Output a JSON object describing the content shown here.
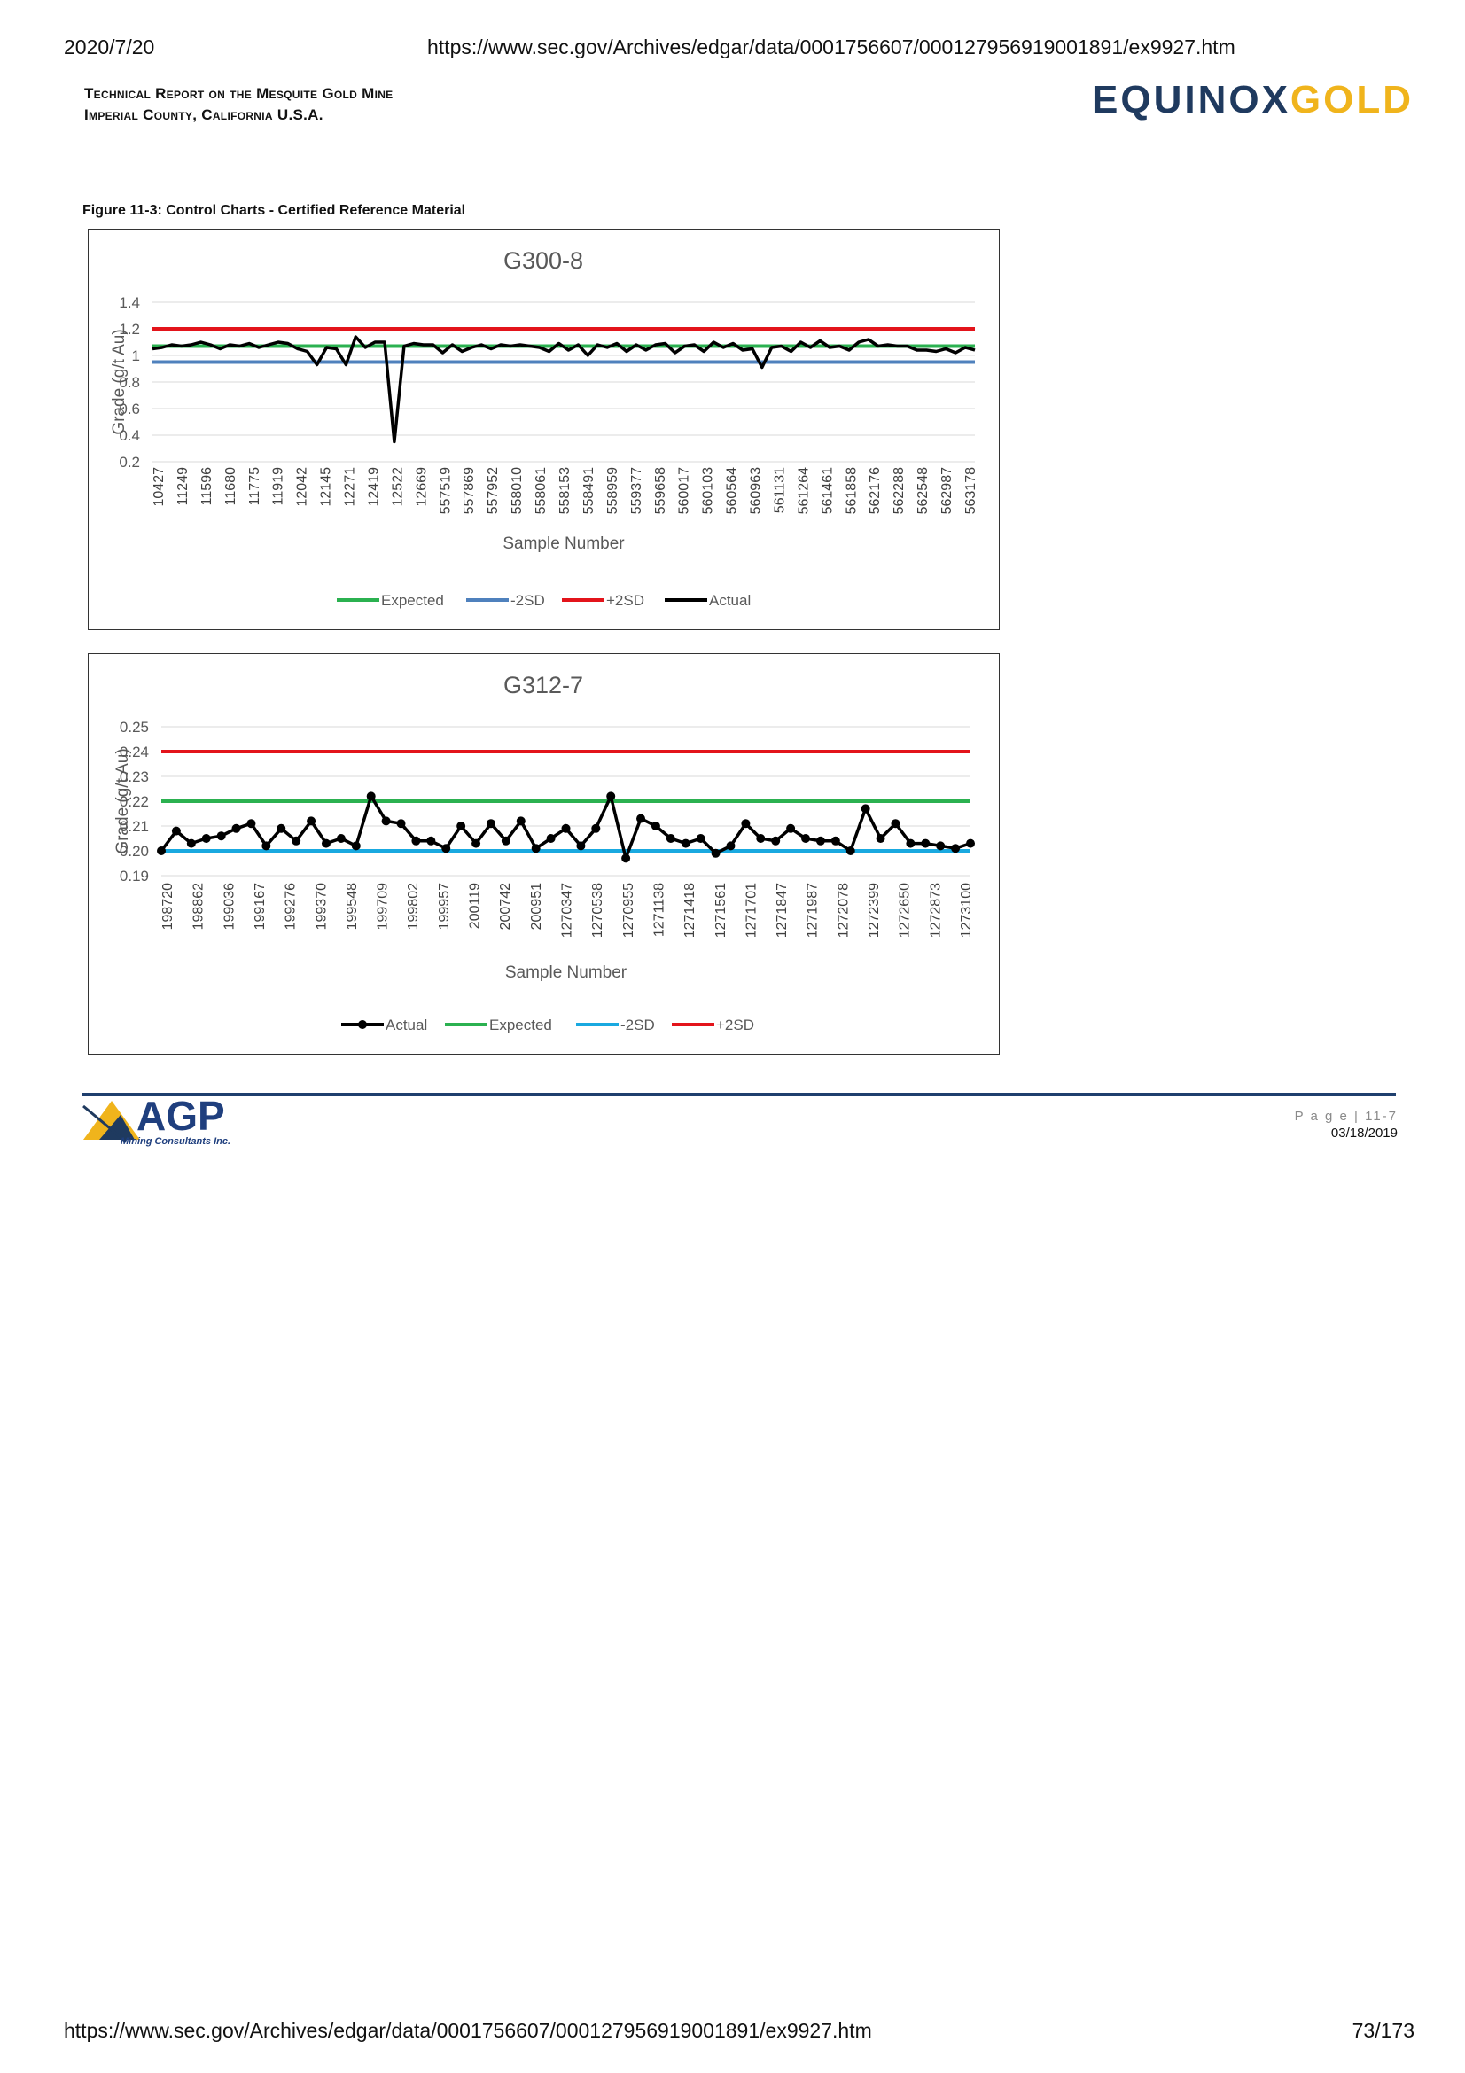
{
  "browser": {
    "date": "2020/7/20",
    "url_top": "https://www.sec.gov/Archives/edgar/data/0001756607/000127956919001891/ex9927.htm",
    "url_bottom": "https://www.sec.gov/Archives/edgar/data/0001756607/000127956919001891/ex9927.htm",
    "page_count": "73/173"
  },
  "header": {
    "title_line1": "Technical Report on the Mesquite Gold Mine",
    "title_line2": "Imperial County, California U.S.A.",
    "logo_part1": "EQUINOX",
    "logo_part2": "GOLD"
  },
  "figure": {
    "caption": "Figure 11-3: Control Charts - Certified Reference Material"
  },
  "chart_data": [
    {
      "type": "line",
      "title": "G300-8",
      "xlabel": "Sample Number",
      "ylabel": "Grade (g/t Au)",
      "ylim": [
        0.2,
        1.4
      ],
      "yticks": [
        "1.4",
        "1.2",
        "1",
        "0.8",
        "0.6",
        "0.4",
        "0.2"
      ],
      "grid": true,
      "legend_position": "bottom",
      "x_tick_labels": [
        "10427",
        "11249",
        "11596",
        "11680",
        "11775",
        "11919",
        "12042",
        "12145",
        "12271",
        "12419",
        "12522",
        "12669",
        "557519",
        "557869",
        "557952",
        "558010",
        "558061",
        "558153",
        "558491",
        "558959",
        "559377",
        "559658",
        "560017",
        "560103",
        "560564",
        "560963",
        "561131",
        "561264",
        "561461",
        "561858",
        "562176",
        "562288",
        "562548",
        "562987",
        "563178"
      ],
      "reference_lines": [
        {
          "name": "Expected",
          "value": 1.07,
          "color": "#2bb150"
        },
        {
          "name": "-2SD",
          "value": 0.95,
          "color": "#4f81bd"
        },
        {
          "name": "+2SD",
          "value": 1.2,
          "color": "#e3141b"
        }
      ],
      "series": [
        {
          "name": "Actual",
          "color": "#000000",
          "markers": false,
          "values": [
            1.05,
            1.06,
            1.08,
            1.07,
            1.08,
            1.1,
            1.08,
            1.05,
            1.08,
            1.07,
            1.09,
            1.06,
            1.08,
            1.1,
            1.09,
            1.05,
            1.03,
            0.93,
            1.06,
            1.05,
            0.93,
            1.14,
            1.06,
            1.1,
            1.1,
            0.35,
            1.07,
            1.09,
            1.08,
            1.08,
            1.02,
            1.08,
            1.03,
            1.06,
            1.08,
            1.05,
            1.08,
            1.07,
            1.08,
            1.07,
            1.06,
            1.03,
            1.09,
            1.04,
            1.08,
            1.0,
            1.08,
            1.06,
            1.09,
            1.03,
            1.08,
            1.04,
            1.08,
            1.09,
            1.02,
            1.07,
            1.08,
            1.03,
            1.1,
            1.06,
            1.09,
            1.04,
            1.05,
            0.91,
            1.06,
            1.07,
            1.03,
            1.1,
            1.06,
            1.11,
            1.06,
            1.07,
            1.04,
            1.1,
            1.12,
            1.07,
            1.08,
            1.07,
            1.07,
            1.04,
            1.04,
            1.03,
            1.05,
            1.02,
            1.06,
            1.04
          ]
        }
      ]
    },
    {
      "type": "line",
      "title": "G312-7",
      "xlabel": "Sample Number",
      "ylabel": "Grade (g/t Au)",
      "ylim": [
        0.19,
        0.25
      ],
      "yticks": [
        "0.25",
        "0.24",
        "0.23",
        "0.22",
        "0.21",
        "0.20",
        "0.19"
      ],
      "grid": true,
      "legend_position": "bottom",
      "x_tick_labels": [
        "198720",
        "198862",
        "199036",
        "199167",
        "199276",
        "199370",
        "199548",
        "199709",
        "199802",
        "199957",
        "200119",
        "200742",
        "200951",
        "1270347",
        "1270538",
        "1270955",
        "1271138",
        "1271418",
        "1271561",
        "1271701",
        "1271847",
        "1271987",
        "1272078",
        "1272399",
        "1272650",
        "1272873",
        "1273100"
      ],
      "reference_lines": [
        {
          "name": "Expected",
          "value": 0.22,
          "color": "#2bb150"
        },
        {
          "name": "-2SD",
          "value": 0.2,
          "color": "#19a9e0"
        },
        {
          "name": "+2SD",
          "value": 0.24,
          "color": "#e3141b"
        }
      ],
      "series": [
        {
          "name": "Actual",
          "color": "#000000",
          "markers": true,
          "values": [
            0.2,
            0.208,
            0.203,
            0.205,
            0.206,
            0.209,
            0.211,
            0.202,
            0.209,
            0.204,
            0.212,
            0.203,
            0.205,
            0.202,
            0.222,
            0.212,
            0.211,
            0.204,
            0.204,
            0.201,
            0.21,
            0.203,
            0.211,
            0.204,
            0.212,
            0.201,
            0.205,
            0.209,
            0.202,
            0.209,
            0.222,
            0.197,
            0.213,
            0.21,
            0.205,
            0.203,
            0.205,
            0.199,
            0.202,
            0.211,
            0.205,
            0.204,
            0.209,
            0.205,
            0.204,
            0.204,
            0.2,
            0.217,
            0.205,
            0.211,
            0.203,
            0.203,
            0.202,
            0.201,
            0.203
          ]
        }
      ],
      "legend_order": [
        "Actual",
        "Expected",
        "-2SD",
        "+2SD"
      ]
    }
  ],
  "footer": {
    "agp_logo_text": "AGP",
    "agp_logo_subtext": "Mining Consultants Inc.",
    "page_label": "P a g e | 11-7",
    "date": "03/18/2019"
  }
}
